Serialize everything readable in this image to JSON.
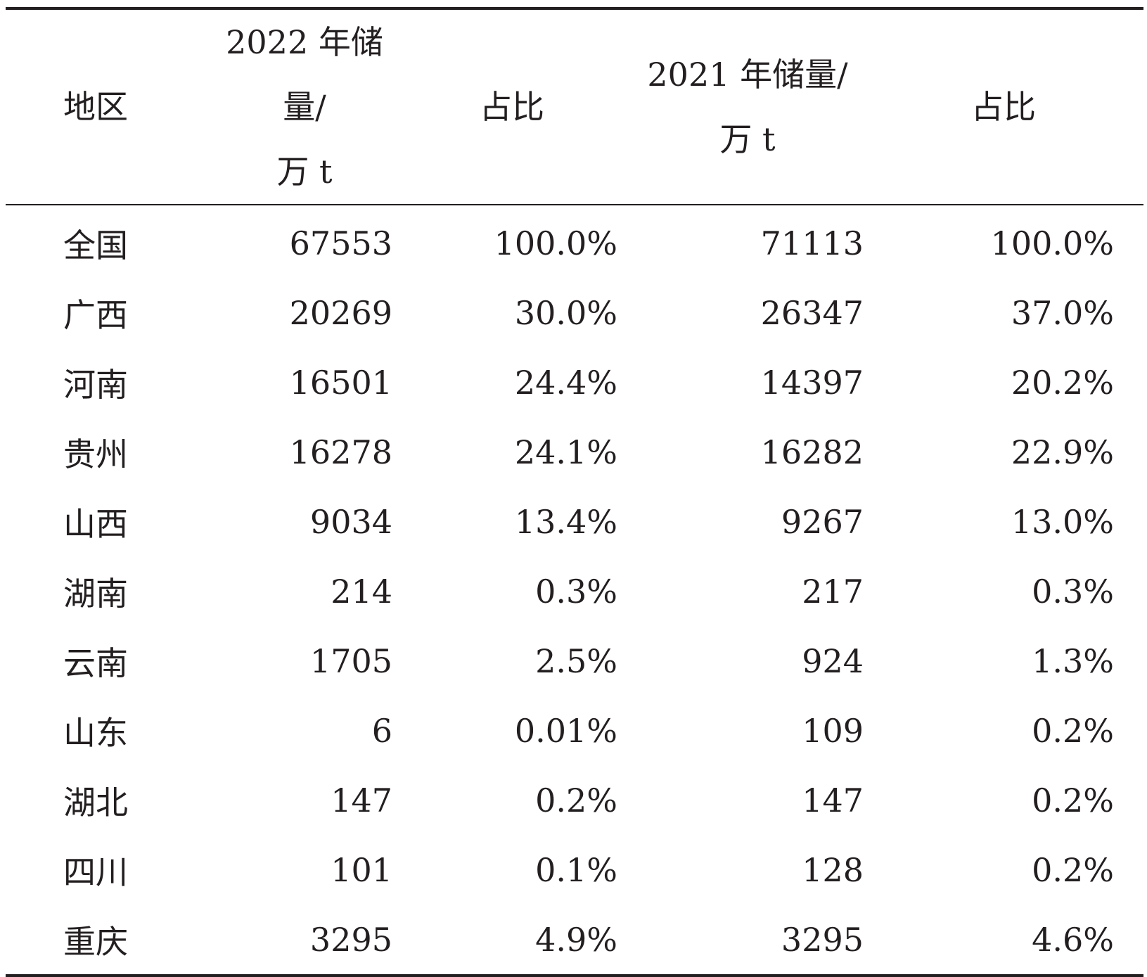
{
  "table": {
    "headers": {
      "region": "地区",
      "reserve_2022_line1": "2022 年储量/",
      "reserve_2022_line2": "万 t",
      "share_2022": "占比",
      "reserve_2021_line1": "2021 年储量/",
      "reserve_2021_line2": "万 t",
      "share_2021": "占比"
    },
    "rows": [
      {
        "region": "全国",
        "reserve_2022": "67553",
        "share_2022": "100.0%",
        "reserve_2021": "71113",
        "share_2021": "100.0%"
      },
      {
        "region": "广西",
        "reserve_2022": "20269",
        "share_2022": "30.0%",
        "reserve_2021": "26347",
        "share_2021": "37.0%"
      },
      {
        "region": "河南",
        "reserve_2022": "16501",
        "share_2022": "24.4%",
        "reserve_2021": "14397",
        "share_2021": "20.2%"
      },
      {
        "region": "贵州",
        "reserve_2022": "16278",
        "share_2022": "24.1%",
        "reserve_2021": "16282",
        "share_2021": "22.9%"
      },
      {
        "region": "山西",
        "reserve_2022": "9034",
        "share_2022": "13.4%",
        "reserve_2021": "9267",
        "share_2021": "13.0%"
      },
      {
        "region": "湖南",
        "reserve_2022": "214",
        "share_2022": "0.3%",
        "reserve_2021": "217",
        "share_2021": "0.3%"
      },
      {
        "region": "云南",
        "reserve_2022": "1705",
        "share_2022": "2.5%",
        "reserve_2021": "924",
        "share_2021": "1.3%"
      },
      {
        "region": "山东",
        "reserve_2022": "6",
        "share_2022": "0.01%",
        "reserve_2021": "109",
        "share_2021": "0.2%"
      },
      {
        "region": "湖北",
        "reserve_2022": "147",
        "share_2022": "0.2%",
        "reserve_2021": "147",
        "share_2021": "0.2%"
      },
      {
        "region": "四川",
        "reserve_2022": "101",
        "share_2022": "0.1%",
        "reserve_2021": "128",
        "share_2021": "0.2%"
      },
      {
        "region": "重庆",
        "reserve_2022": "3295",
        "share_2022": "4.9%",
        "reserve_2021": "3295",
        "share_2021": "4.6%"
      }
    ]
  }
}
